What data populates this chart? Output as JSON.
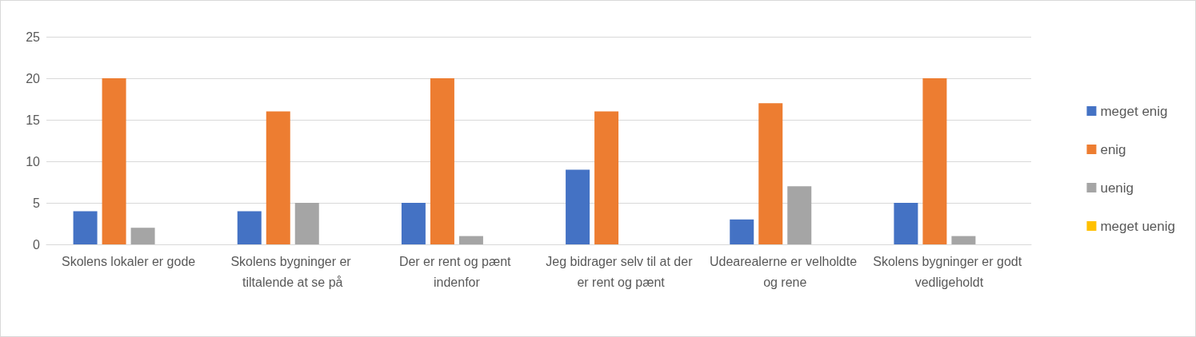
{
  "chart_data": {
    "type": "bar",
    "categories": [
      "Skolens lokaler er gode",
      "Skolens bygninger er tiltalende at se på",
      "Der er rent og pænt indenfor",
      "Jeg bidrager selv til at der er rent og pænt",
      "Udearealerne er velholdte og rene",
      "Skolens bygninger er godt vedligeholdt"
    ],
    "series": [
      {
        "name": "meget enig",
        "color": "#4472c4",
        "values": [
          4,
          4,
          5,
          9,
          3,
          5
        ]
      },
      {
        "name": "enig",
        "color": "#ed7d31",
        "values": [
          20,
          16,
          20,
          16,
          17,
          20
        ]
      },
      {
        "name": "uenig",
        "color": "#a5a5a5",
        "values": [
          2,
          5,
          1,
          0,
          7,
          1
        ]
      },
      {
        "name": "meget uenig",
        "color": "#ffc000",
        "values": [
          0,
          0,
          0,
          0,
          0,
          0
        ]
      }
    ],
    "ylim": [
      0,
      25
    ],
    "yticks": [
      0,
      5,
      10,
      15,
      20,
      25
    ],
    "grid": "y",
    "legend": "right"
  }
}
